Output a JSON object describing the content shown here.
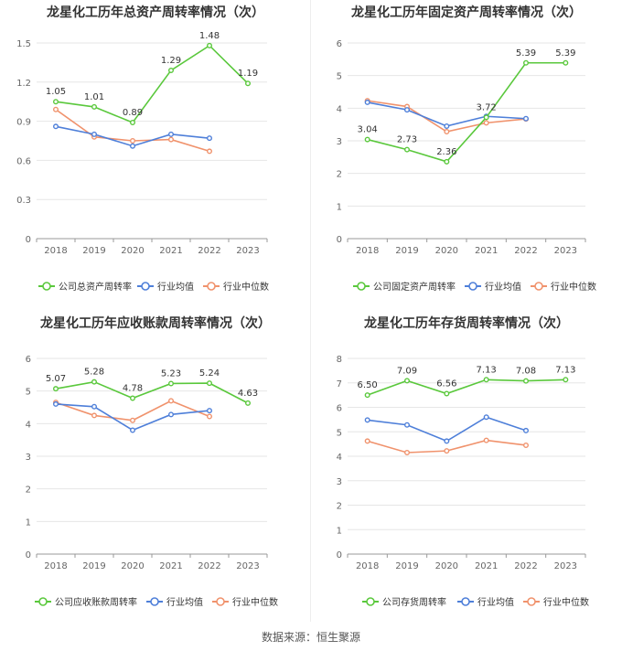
{
  "source": "数据来源：恒生聚源",
  "colors": {
    "company": "#5ac83c",
    "avg": "#4e7fd9",
    "median": "#f0926c"
  },
  "chart_data": [
    {
      "type": "line",
      "title": "龙星化工历年总资产周转率情况（次）",
      "categories": [
        "2018",
        "2019",
        "2020",
        "2021",
        "2022",
        "2023"
      ],
      "ylim": [
        0,
        1.5
      ],
      "yticks": [
        0,
        0.3,
        0.6,
        0.9,
        1.2,
        1.5
      ],
      "ytick_labels": [
        "0",
        "0.3",
        "0.6",
        "0.9",
        "1.2",
        "1.5"
      ],
      "series": [
        {
          "name": "公司总资产周转率",
          "key": "company",
          "values": [
            1.05,
            1.01,
            0.89,
            1.29,
            1.48,
            1.19
          ],
          "labels": [
            "1.05",
            "1.01",
            "0.89",
            "1.29",
            "1.48",
            "1.19"
          ]
        },
        {
          "name": "行业均值",
          "key": "avg",
          "values": [
            0.86,
            0.8,
            0.71,
            0.8,
            0.77,
            null
          ]
        },
        {
          "name": "行业中位数",
          "key": "median",
          "values": [
            0.99,
            0.78,
            0.75,
            0.76,
            0.67,
            null
          ]
        }
      ]
    },
    {
      "type": "line",
      "title": "龙星化工历年固定资产周转率情况（次）",
      "categories": [
        "2018",
        "2019",
        "2020",
        "2021",
        "2022",
        "2023"
      ],
      "ylim": [
        0,
        6
      ],
      "yticks": [
        0,
        1,
        2,
        3,
        4,
        5,
        6
      ],
      "ytick_labels": [
        "0",
        "1",
        "2",
        "3",
        "4",
        "5",
        "6"
      ],
      "series": [
        {
          "name": "公司固定资产周转率",
          "key": "company",
          "values": [
            3.04,
            2.73,
            2.36,
            3.72,
            5.39,
            5.39
          ],
          "labels": [
            "3.04",
            "2.73",
            "2.36",
            "3.72",
            "5.39",
            "5.39"
          ]
        },
        {
          "name": "行业均值",
          "key": "avg",
          "values": [
            4.18,
            3.95,
            3.45,
            3.75,
            3.68,
            null
          ]
        },
        {
          "name": "行业中位数",
          "key": "median",
          "values": [
            4.23,
            4.05,
            3.28,
            3.55,
            3.67,
            null
          ]
        }
      ]
    },
    {
      "type": "line",
      "title": "龙星化工历年应收账款周转率情况（次）",
      "categories": [
        "2018",
        "2019",
        "2020",
        "2021",
        "2022",
        "2023"
      ],
      "ylim": [
        0,
        6
      ],
      "yticks": [
        0,
        1,
        2,
        3,
        4,
        5,
        6
      ],
      "ytick_labels": [
        "0",
        "1",
        "2",
        "3",
        "4",
        "5",
        "6"
      ],
      "series": [
        {
          "name": "公司应收账款周转率",
          "key": "company",
          "values": [
            5.07,
            5.28,
            4.78,
            5.23,
            5.24,
            4.63
          ],
          "labels": [
            "5.07",
            "5.28",
            "4.78",
            "5.23",
            "5.24",
            "4.63"
          ]
        },
        {
          "name": "行业均值",
          "key": "avg",
          "values": [
            4.6,
            4.52,
            3.8,
            4.28,
            4.4,
            null
          ]
        },
        {
          "name": "行业中位数",
          "key": "median",
          "values": [
            4.65,
            4.25,
            4.1,
            4.7,
            4.22,
            null
          ]
        }
      ]
    },
    {
      "type": "line",
      "title": "龙星化工历年存货周转率情况（次）",
      "categories": [
        "2018",
        "2019",
        "2020",
        "2021",
        "2022",
        "2023"
      ],
      "ylim": [
        0,
        8
      ],
      "yticks": [
        0,
        1,
        2,
        3,
        4,
        5,
        6,
        7,
        8
      ],
      "ytick_labels": [
        "0",
        "1",
        "2",
        "3",
        "4",
        "5",
        "6",
        "7",
        "8"
      ],
      "series": [
        {
          "name": "公司存货周转率",
          "key": "company",
          "values": [
            6.5,
            7.09,
            6.56,
            7.13,
            7.08,
            7.13
          ],
          "labels": [
            "6.50",
            "7.09",
            "6.56",
            "7.13",
            "7.08",
            "7.13"
          ]
        },
        {
          "name": "行业均值",
          "key": "avg",
          "values": [
            5.48,
            5.28,
            4.62,
            5.6,
            5.05,
            null
          ]
        },
        {
          "name": "行业中位数",
          "key": "median",
          "values": [
            4.62,
            4.15,
            4.22,
            4.65,
            4.45,
            null
          ]
        }
      ]
    }
  ]
}
